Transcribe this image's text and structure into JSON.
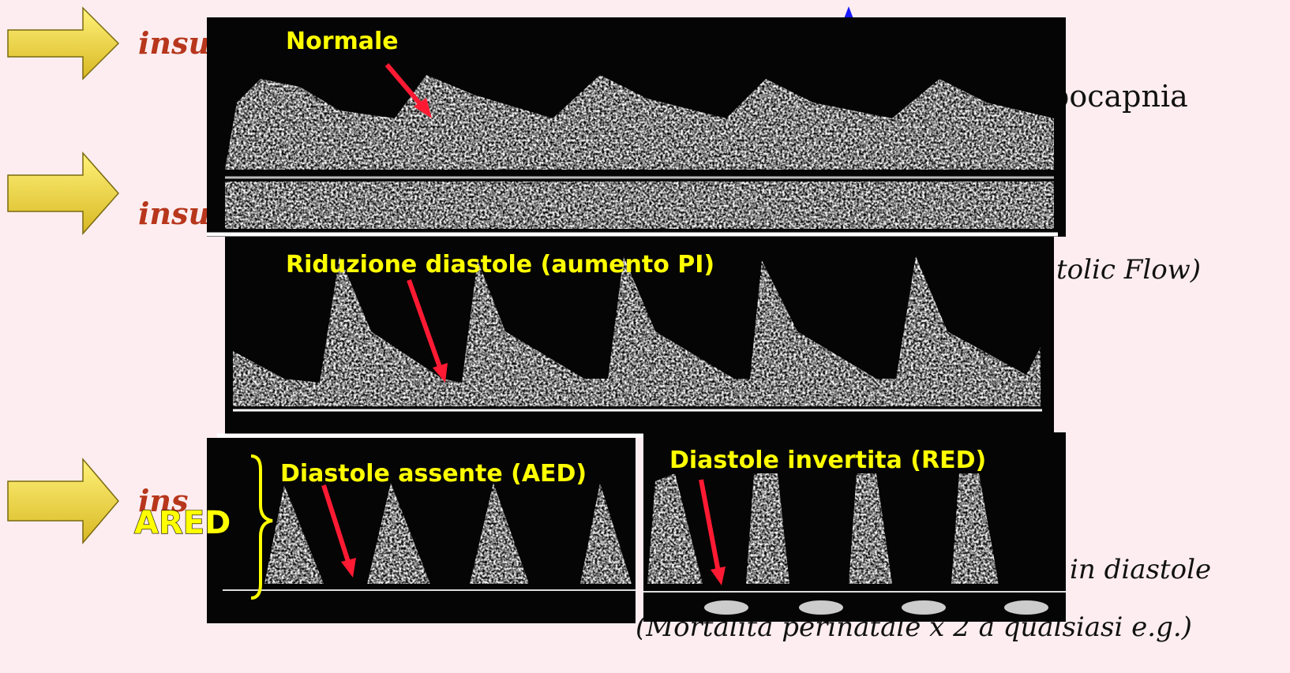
{
  "slide": {
    "background_texts": [
      {
        "text": "insu"
      },
      {
        "text": "insu"
      },
      {
        "text": "ins"
      },
      {
        "text": "pocapnia"
      },
      {
        "text": "tolic Flow)"
      },
      {
        "text": "in diastole"
      },
      {
        "text": "(Mortalità perinatale x 2 a qualsiasi e.g.)"
      }
    ],
    "panels": [
      {
        "label": "Normale"
      },
      {
        "label": "Riduzione diastole (aumento PI)"
      },
      {
        "label": "Diastole assente (AED)"
      },
      {
        "label": "Diastole invertita (RED)"
      }
    ],
    "group_label": "ARED"
  }
}
